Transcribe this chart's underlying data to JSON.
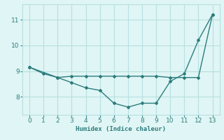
{
  "xlabel": "Humidex (Indice chaleur)",
  "line1_x": [
    0,
    1,
    2,
    3,
    4,
    5,
    6,
    7,
    8,
    9,
    10,
    11,
    12,
    13
  ],
  "line1_y": [
    9.15,
    8.9,
    8.75,
    8.55,
    8.35,
    8.25,
    7.75,
    7.6,
    7.75,
    7.75,
    8.6,
    8.9,
    10.2,
    11.2
  ],
  "line2_x": [
    0,
    2,
    3,
    4,
    5,
    6,
    7,
    8,
    9,
    10,
    11,
    12,
    13
  ],
  "line2_y": [
    9.15,
    8.75,
    8.8,
    8.8,
    8.8,
    8.8,
    8.8,
    8.8,
    8.8,
    8.75,
    8.75,
    8.75,
    11.2
  ],
  "color": "#2d7d7d",
  "bg_color": "#e0f5f5",
  "grid_color": "#b8e0e0",
  "ylim": [
    7.3,
    11.6
  ],
  "xlim": [
    -0.5,
    13.5
  ],
  "yticks": [
    8,
    9,
    10,
    11
  ],
  "xticks": [
    0,
    1,
    2,
    3,
    4,
    5,
    6,
    7,
    8,
    9,
    10,
    11,
    12,
    13
  ]
}
